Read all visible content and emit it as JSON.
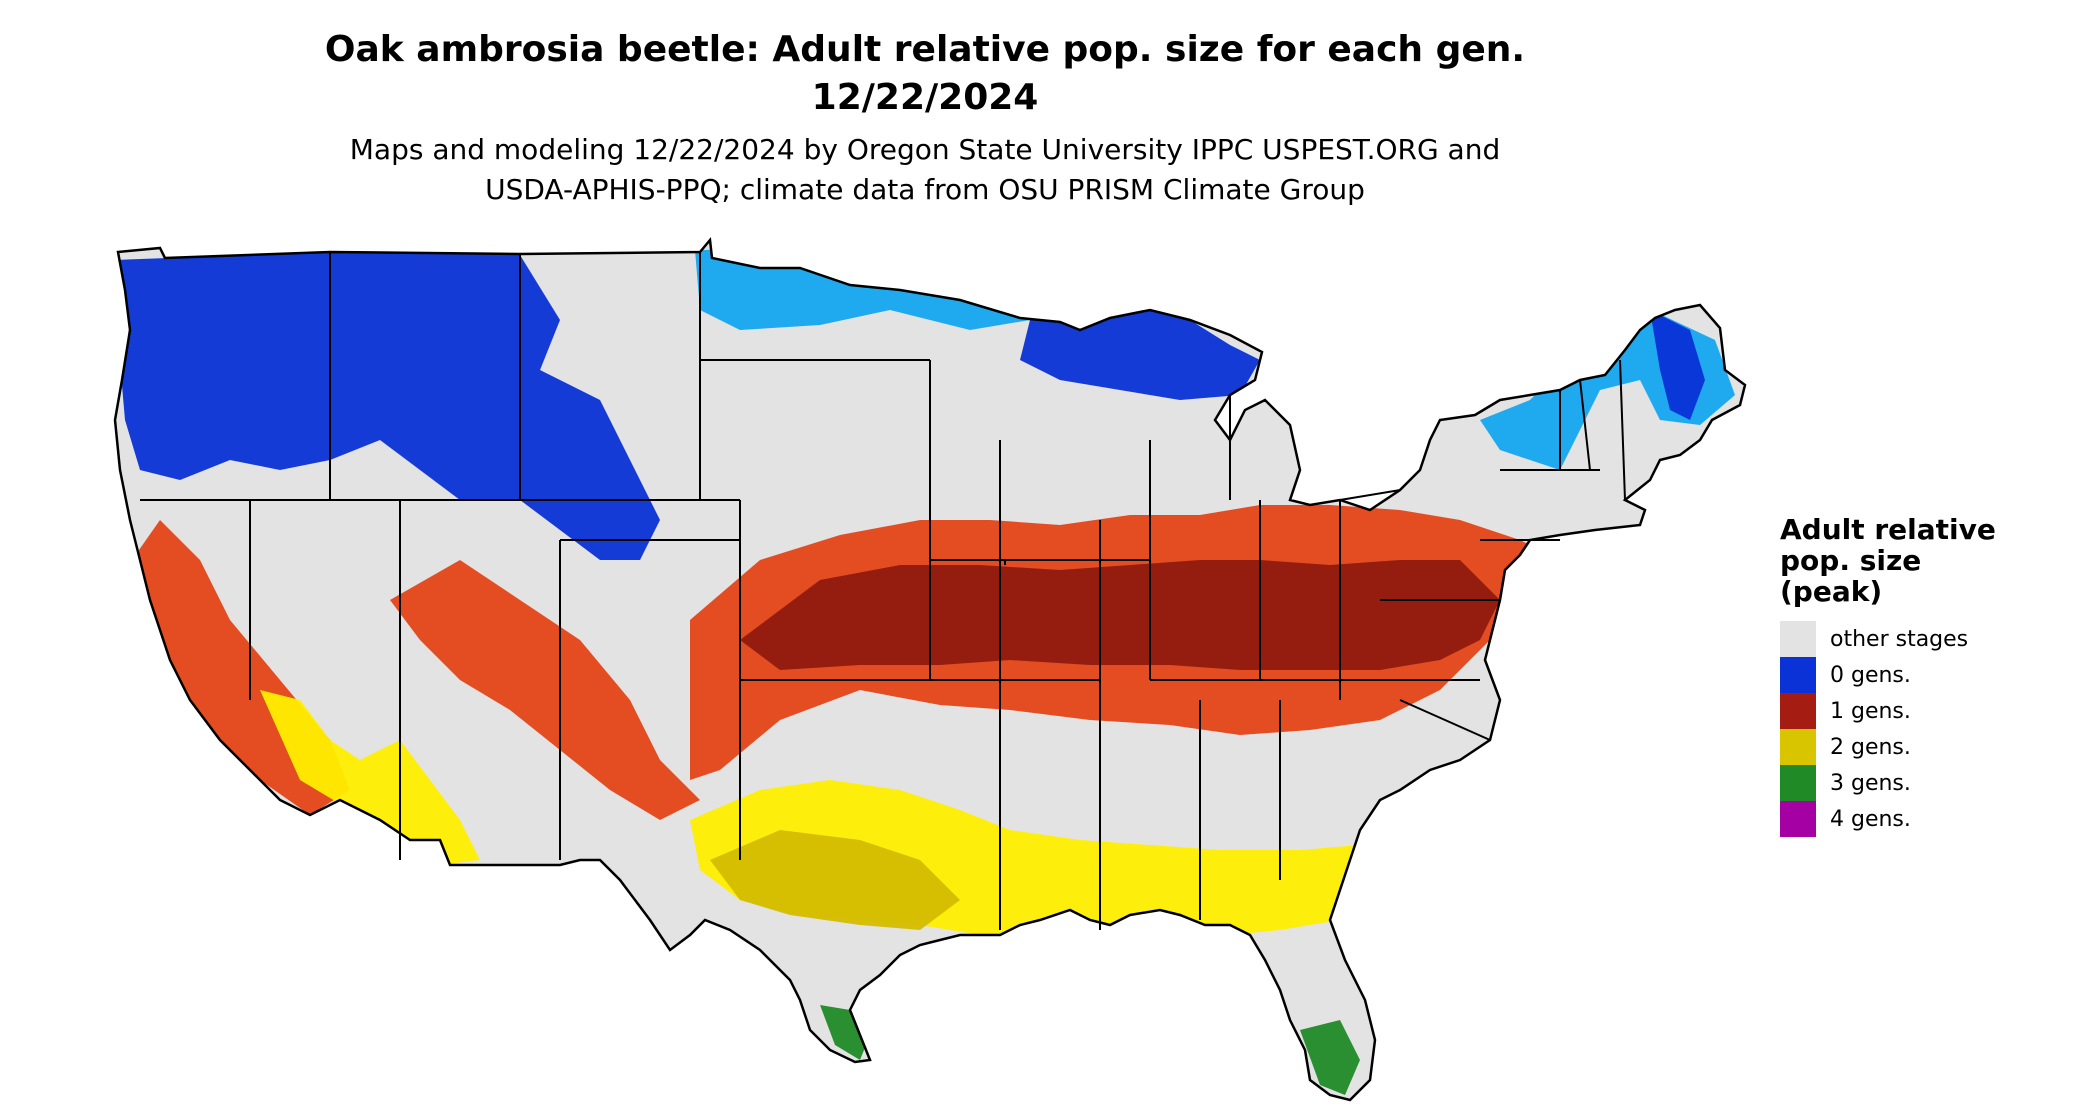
{
  "title_line1": "Oak ambrosia beetle: Adult relative pop. size for each gen.",
  "title_line2": "12/22/2024",
  "subtitle_line1": "Maps and modeling 12/22/2024 by Oregon State University IPPC USPEST.ORG and",
  "subtitle_line2": "USDA-APHIS-PPQ; climate data from OSU PRISM Climate Group",
  "legend": {
    "title_line1": "Adult relative",
    "title_line2": "pop. size",
    "title_line3": "(peak)",
    "items": [
      {
        "label": "other stages",
        "color": "#e3e3e3"
      },
      {
        "label": "0 gens.",
        "color": "#0a32d6"
      },
      {
        "label": "1 gens.",
        "color": "#a51d12"
      },
      {
        "label": "2 gens.",
        "color": "#d9c400"
      },
      {
        "label": "3 gens.",
        "color": "#208a26"
      },
      {
        "label": "4 gens.",
        "color": "#a400a4"
      }
    ]
  },
  "map_colors": {
    "base": "#e3e3e3",
    "zero_dark": "#0a32d6",
    "zero_light": "#14a6f0",
    "one_dark": "#8f1a10",
    "one_light": "#e34516",
    "two": "#ffee00",
    "two_dark": "#d4bc00",
    "three": "#208a26",
    "three_light": "#6ed36a",
    "border": "#000000"
  }
}
